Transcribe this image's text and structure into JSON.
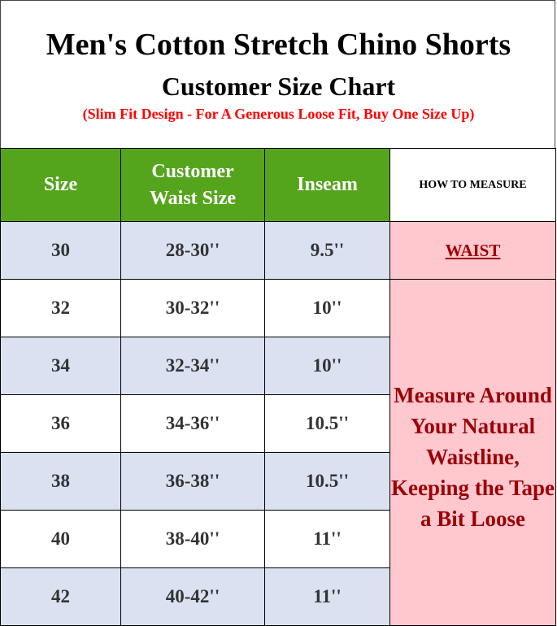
{
  "title": "Men's Cotton Stretch Chino Shorts",
  "subtitle": "Customer Size Chart",
  "note": "(Slim Fit Design - For A Generous Loose Fit, Buy One Size Up)",
  "headers": {
    "size": "Size",
    "waist_line1": "Customer",
    "waist_line2": "Waist Size",
    "inseam": "Inseam",
    "how_to": "HOW TO MEASURE"
  },
  "rows": [
    {
      "size": "30",
      "waist": "28-30''",
      "inseam": "9.5''"
    },
    {
      "size": "32",
      "waist": "30-32''",
      "inseam": "10''"
    },
    {
      "size": "34",
      "waist": "32-34''",
      "inseam": "10''"
    },
    {
      "size": "36",
      "waist": "34-36''",
      "inseam": "10.5''"
    },
    {
      "size": "38",
      "waist": "36-38''",
      "inseam": "10.5''"
    },
    {
      "size": "40",
      "waist": "38-40''",
      "inseam": "11''"
    },
    {
      "size": "42",
      "waist": "40-42''",
      "inseam": "11''"
    }
  ],
  "measure": {
    "label": "WAIST",
    "instructions": "Measure Around Your Natural Waistline, Keeping the Tape a Bit Loose"
  },
  "colors": {
    "header_green": "#55a51c",
    "row_blue": "#dae1f0",
    "measure_pink": "#ffc7ce",
    "measure_text": "#9c0006",
    "note_red": "#ff0000"
  }
}
